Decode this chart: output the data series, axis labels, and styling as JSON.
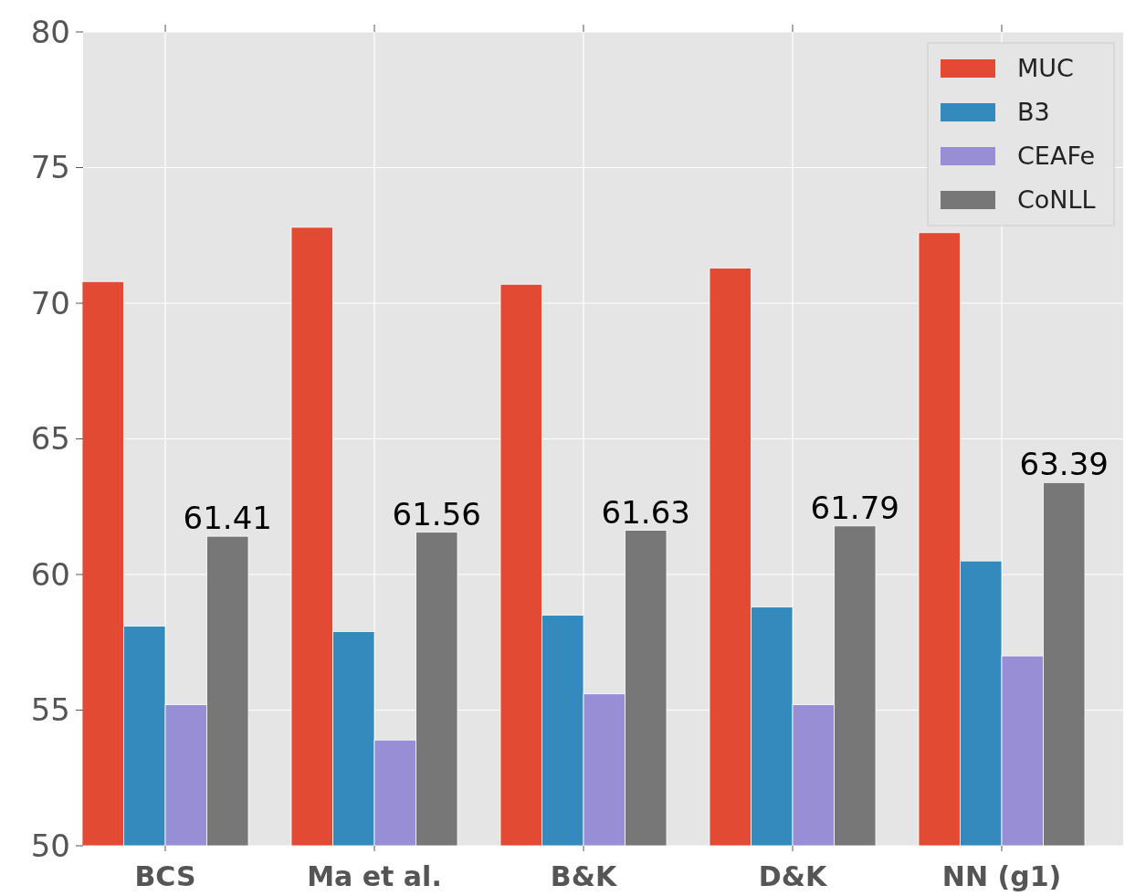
{
  "chart_data": {
    "type": "bar",
    "categories": [
      "BCS",
      "Ma et al.",
      "B&K",
      "D&K",
      "NN (g1)"
    ],
    "series": [
      {
        "name": "MUC",
        "color": "#e24a33",
        "values": [
          70.8,
          72.8,
          70.7,
          71.3,
          72.6
        ]
      },
      {
        "name": "B3",
        "color": "#348abd",
        "values": [
          58.1,
          57.9,
          58.5,
          58.8,
          60.5
        ]
      },
      {
        "name": "CEAFe",
        "color": "#988ed5",
        "values": [
          55.2,
          53.9,
          55.6,
          55.2,
          57.0
        ]
      },
      {
        "name": "CoNLL",
        "color": "#777777",
        "values": [
          61.41,
          61.56,
          61.63,
          61.79,
          63.39
        ],
        "value_labels": [
          "61.41",
          "61.56",
          "61.63",
          "61.79",
          "63.39"
        ]
      }
    ],
    "ylim": [
      50,
      80
    ],
    "yticks": [
      50,
      55,
      60,
      65,
      70,
      75,
      80
    ],
    "grid": true,
    "legend": "top right"
  }
}
